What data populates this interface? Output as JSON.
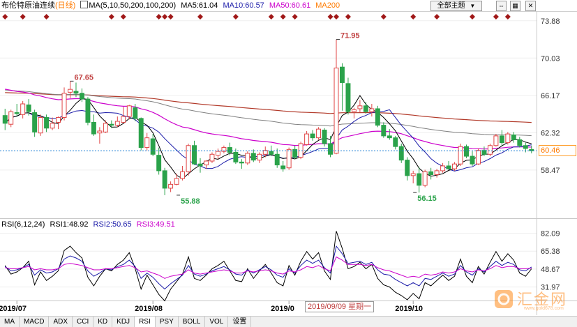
{
  "header": {
    "title": "布伦特原油连续",
    "period": "(日线)",
    "ma_label": "MA(5,10,50,200,100,200)",
    "ma5": "MA5:61.04",
    "ma10": "MA10:60.57",
    "ma50": "MA50:60.61",
    "ma200": "MA200"
  },
  "controls": {
    "theme_select": "全部主题",
    "expand_icon": "expand-icon",
    "settings_icon": "settings-icon",
    "close_icon": "close-icon"
  },
  "rsi_header": {
    "label": "RSI(6,12,24)",
    "rsi1": "RSI1:48.92",
    "rsi2": "RSI2:50.65",
    "rsi3": "RSI3:49.51"
  },
  "crosshair_date": "2019/09/09 星期一",
  "current_price": "60.46",
  "logo_text": "汇金网",
  "logo_url": "www.gold678.com",
  "tabs": [
    "MA",
    "MACD",
    "ADX",
    "CCI",
    "KD",
    "KDJ",
    "RSI",
    "PSY",
    "BOLL",
    "VOL",
    "设置"
  ],
  "colors": {
    "up": "#e04545",
    "down": "#2aa24a",
    "ma5": "#000000",
    "ma10": "#1a1aa8",
    "ma50": "#cc00cc",
    "ma100": "#808080",
    "ma200": "#b23a2a",
    "price_line": "#1a7fd4",
    "rsi1": "#000000",
    "rsi2": "#1a1aa8",
    "rsi3": "#cc00cc"
  },
  "chart_data": [
    {
      "type": "candlestick",
      "title": "布伦特原油连续(日线)",
      "y_ticks": [
        73.88,
        70.03,
        66.17,
        62.32,
        58.47
      ],
      "ylim": [
        53.5,
        74.8
      ],
      "x_labels": [
        "2019/07",
        "2019/08",
        "2019/0",
        "2019/10"
      ],
      "x_label_index": [
        2,
        25,
        48,
        69
      ],
      "annotations": [
        {
          "text": "67.65",
          "index": 11,
          "price": 67.65,
          "position": "above"
        },
        {
          "text": "71.95",
          "index": 56,
          "price": 71.95,
          "position": "above"
        },
        {
          "text": "55.88",
          "index": 29,
          "price": 55.88,
          "position": "below"
        },
        {
          "text": "56.15",
          "index": 69,
          "price": 56.15,
          "position": "below"
        }
      ],
      "current_price": 60.46,
      "event_markers_index": [
        0,
        3,
        7,
        18,
        20,
        26,
        27,
        28,
        33,
        39,
        45,
        47,
        49,
        55,
        56,
        58,
        64,
        69,
        73,
        79,
        83,
        85
      ],
      "ohlc": [
        [
          64.1,
          64.8,
          62.6,
          63.3
        ],
        [
          63.2,
          64.7,
          62.9,
          64.5
        ],
        [
          64.4,
          65.3,
          64.0,
          64.3
        ],
        [
          64.2,
          65.6,
          63.8,
          65.3
        ],
        [
          65.2,
          65.8,
          64.1,
          64.5
        ],
        [
          64.4,
          64.7,
          61.9,
          62.4
        ],
        [
          62.3,
          64.2,
          62.0,
          63.9
        ],
        [
          63.9,
          64.2,
          62.4,
          62.8
        ],
        [
          62.8,
          63.9,
          62.6,
          63.3
        ],
        [
          63.4,
          64.0,
          62.7,
          63.9
        ],
        [
          63.9,
          67.0,
          63.6,
          66.4
        ],
        [
          66.5,
          67.65,
          65.9,
          66.8
        ],
        [
          66.6,
          67.5,
          66.0,
          66.4
        ],
        [
          66.4,
          66.9,
          65.5,
          65.8
        ],
        [
          65.8,
          66.0,
          63.1,
          63.4
        ],
        [
          63.4,
          64.2,
          62.0,
          62.2
        ],
        [
          62.3,
          62.9,
          61.2,
          62.5
        ],
        [
          62.4,
          63.6,
          62.3,
          63.3
        ],
        [
          63.2,
          63.6,
          62.8,
          63.1
        ],
        [
          63.1,
          64.0,
          62.9,
          63.5
        ],
        [
          63.4,
          65.0,
          63.3,
          64.0
        ],
        [
          64.0,
          65.2,
          63.7,
          65.1
        ],
        [
          64.9,
          65.3,
          63.5,
          63.8
        ],
        [
          63.8,
          63.9,
          60.5,
          60.8
        ],
        [
          60.8,
          62.3,
          60.5,
          61.8
        ],
        [
          61.7,
          62.2,
          59.9,
          60.1
        ],
        [
          60.0,
          60.8,
          58.0,
          58.4
        ],
        [
          58.4,
          58.7,
          55.88,
          56.6
        ],
        [
          56.6,
          57.3,
          56.2,
          57.0
        ],
        [
          57.0,
          58.1,
          56.9,
          57.6
        ],
        [
          57.6,
          58.9,
          57.4,
          58.3
        ],
        [
          58.3,
          61.2,
          57.9,
          61.0
        ],
        [
          61.0,
          61.5,
          59.0,
          59.1
        ],
        [
          59.1,
          59.7,
          58.2,
          58.9
        ],
        [
          59.0,
          59.5,
          58.6,
          59.4
        ],
        [
          59.4,
          60.3,
          59.2,
          60.1
        ],
        [
          60.0,
          60.7,
          59.6,
          60.4
        ],
        [
          60.4,
          61.0,
          60.2,
          60.8
        ],
        [
          60.8,
          61.3,
          60.0,
          60.3
        ],
        [
          60.3,
          60.7,
          59.1,
          59.3
        ],
        [
          59.3,
          59.6,
          58.6,
          59.2
        ],
        [
          59.2,
          60.4,
          59.0,
          60.2
        ],
        [
          60.2,
          60.6,
          59.3,
          59.5
        ],
        [
          59.5,
          60.3,
          59.2,
          60.1
        ],
        [
          60.1,
          60.9,
          59.8,
          60.5
        ],
        [
          60.4,
          61.0,
          59.9,
          60.1
        ],
        [
          60.1,
          60.7,
          58.7,
          59.0
        ],
        [
          58.9,
          59.4,
          58.3,
          58.6
        ],
        [
          58.7,
          60.8,
          58.5,
          60.6
        ],
        [
          60.6,
          61.0,
          59.6,
          59.8
        ],
        [
          59.8,
          61.4,
          59.6,
          61.2
        ],
        [
          61.1,
          62.5,
          61.0,
          62.2
        ],
        [
          62.2,
          62.6,
          61.5,
          61.8
        ],
        [
          61.8,
          62.9,
          61.6,
          62.7
        ],
        [
          62.6,
          62.8,
          60.9,
          61.2
        ],
        [
          61.2,
          62.0,
          59.8,
          60.1
        ],
        [
          60.2,
          71.95,
          60.1,
          69.0
        ],
        [
          69.1,
          69.5,
          64.6,
          67.5
        ],
        [
          67.4,
          68.0,
          64.2,
          64.5
        ],
        [
          64.5,
          64.9,
          63.8,
          64.7
        ],
        [
          64.8,
          65.7,
          64.4,
          65.1
        ],
        [
          65.1,
          65.5,
          64.3,
          64.5
        ],
        [
          64.5,
          65.3,
          64.0,
          64.8
        ],
        [
          64.8,
          65.1,
          62.9,
          63.1
        ],
        [
          63.1,
          63.4,
          61.8,
          62.0
        ],
        [
          62.0,
          62.7,
          61.6,
          61.8
        ],
        [
          61.8,
          62.0,
          60.6,
          60.9
        ],
        [
          60.9,
          61.2,
          59.2,
          59.5
        ],
        [
          59.5,
          59.8,
          57.4,
          57.9
        ],
        [
          57.9,
          58.4,
          57.1,
          58.1
        ],
        [
          58.1,
          58.8,
          56.15,
          56.9
        ],
        [
          56.9,
          58.5,
          56.7,
          58.3
        ],
        [
          58.3,
          58.7,
          57.5,
          58.0
        ],
        [
          58.0,
          58.6,
          57.7,
          58.4
        ],
        [
          58.4,
          59.2,
          58.2,
          58.9
        ],
        [
          58.9,
          59.4,
          58.5,
          58.6
        ],
        [
          58.6,
          59.3,
          58.4,
          59.1
        ],
        [
          59.1,
          61.2,
          58.9,
          60.9
        ],
        [
          60.9,
          61.1,
          59.7,
          59.9
        ],
        [
          59.9,
          60.4,
          58.9,
          59.1
        ],
        [
          59.1,
          60.7,
          59.0,
          60.5
        ],
        [
          60.5,
          60.9,
          59.9,
          60.1
        ],
        [
          60.1,
          61.2,
          59.9,
          61.0
        ],
        [
          61.0,
          62.2,
          60.9,
          62.0
        ],
        [
          62.0,
          62.6,
          61.0,
          61.3
        ],
        [
          61.3,
          62.4,
          61.1,
          62.2
        ],
        [
          62.1,
          62.4,
          61.3,
          61.6
        ],
        [
          61.6,
          61.9,
          60.8,
          61.0
        ],
        [
          61.0,
          61.3,
          60.3,
          60.7
        ],
        [
          60.6,
          61.0,
          60.2,
          60.46
        ]
      ]
    },
    {
      "type": "line",
      "title": "RSI(6,12,24)",
      "y_ticks": [
        82.09,
        65.38,
        48.67,
        31.97
      ],
      "ylim": [
        20,
        87
      ],
      "series": [
        {
          "name": "RSI1",
          "values": [
            52,
            44,
            46,
            50,
            56,
            34,
            46,
            38,
            42,
            47,
            66,
            70,
            64,
            59,
            41,
            33,
            42,
            49,
            47,
            53,
            57,
            64,
            49,
            30,
            43,
            34,
            25,
            19,
            30,
            37,
            44,
            60,
            40,
            38,
            43,
            49,
            52,
            56,
            47,
            38,
            37,
            49,
            40,
            47,
            53,
            45,
            36,
            33,
            52,
            43,
            56,
            65,
            58,
            64,
            47,
            39,
            84,
            68,
            49,
            51,
            55,
            49,
            53,
            40,
            34,
            32,
            27,
            24,
            20,
            26,
            21,
            36,
            33,
            38,
            43,
            38,
            42,
            58,
            42,
            36,
            51,
            44,
            55,
            65,
            56,
            63,
            57,
            45,
            42,
            48.92
          ]
        },
        {
          "name": "RSI2",
          "values": [
            51,
            47,
            48,
            50,
            53,
            43,
            48,
            45,
            46,
            49,
            58,
            61,
            59,
            56,
            47,
            42,
            45,
            49,
            48,
            51,
            53,
            57,
            51,
            40,
            45,
            41,
            35,
            30,
            35,
            39,
            43,
            52,
            44,
            42,
            44,
            47,
            49,
            51,
            48,
            44,
            43,
            48,
            45,
            48,
            51,
            48,
            43,
            41,
            49,
            45,
            52,
            57,
            54,
            57,
            50,
            45,
            70,
            63,
            54,
            55,
            56,
            53,
            55,
            48,
            44,
            43,
            39,
            36,
            33,
            36,
            33,
            40,
            39,
            42,
            45,
            42,
            44,
            52,
            46,
            43,
            49,
            46,
            51,
            56,
            52,
            55,
            53,
            48,
            47,
            50.65
          ]
        },
        {
          "name": "RSI3",
          "values": [
            50,
            49,
            49,
            50,
            51,
            48,
            49,
            48,
            48,
            49,
            53,
            54,
            53,
            52,
            50,
            48,
            48,
            49,
            49,
            50,
            51,
            52,
            50,
            46,
            47,
            45,
            43,
            40,
            42,
            43,
            44,
            48,
            45,
            44,
            45,
            46,
            47,
            48,
            47,
            45,
            45,
            47,
            46,
            47,
            48,
            47,
            45,
            44,
            47,
            46,
            48,
            51,
            50,
            52,
            49,
            47,
            60,
            57,
            53,
            53,
            53,
            52,
            53,
            50,
            48,
            47,
            45,
            43,
            41,
            42,
            41,
            44,
            43,
            44,
            46,
            45,
            46,
            49,
            47,
            46,
            48,
            47,
            49,
            52,
            50,
            51,
            51,
            49,
            49,
            49.51
          ]
        }
      ]
    }
  ]
}
